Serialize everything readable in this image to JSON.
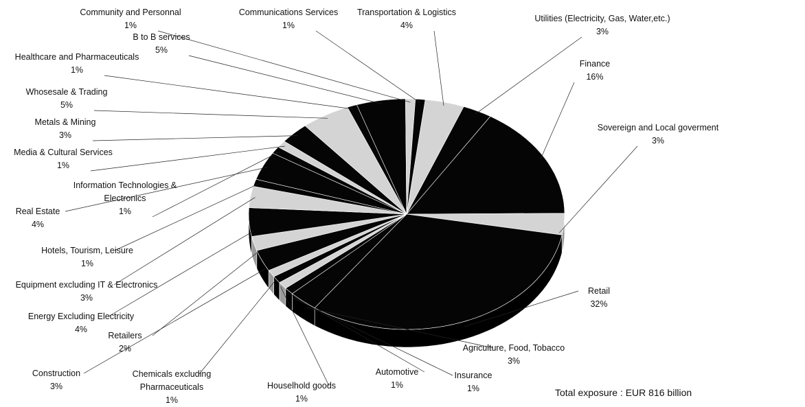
{
  "chart_data": {
    "type": "pie",
    "style": "3d-exploded",
    "total_label": "Total exposure : EUR 816 billion",
    "slices": [
      {
        "name": "Finance",
        "value": 16,
        "pct_label": "16%",
        "shade": "dark"
      },
      {
        "name": "Sovereign and Local goverment",
        "value": 3,
        "pct_label": "3%",
        "shade": "light"
      },
      {
        "name": "Retail",
        "value": 32,
        "pct_label": "32%",
        "shade": "dark"
      },
      {
        "name": "Agriculture, Food, Tobacco",
        "value": 3,
        "pct_label": "3%",
        "shade": "dark"
      },
      {
        "name": "Insurance",
        "value": 1,
        "pct_label": "1%",
        "shade": "dark"
      },
      {
        "name": "Automotive",
        "value": 1,
        "pct_label": "1%",
        "shade": "light"
      },
      {
        "name": "Houselhold goods",
        "value": 1,
        "pct_label": "1%",
        "shade": "dark"
      },
      {
        "name": "Chemicals excluding Pharmaceuticals",
        "value": 1,
        "pct_label": "1%",
        "shade": "light"
      },
      {
        "name": "Construction",
        "value": 3,
        "pct_label": "3%",
        "shade": "dark"
      },
      {
        "name": "Retailers",
        "value": 2,
        "pct_label": "2%",
        "shade": "light"
      },
      {
        "name": "Energy Excluding Electricity",
        "value": 4,
        "pct_label": "4%",
        "shade": "dark"
      },
      {
        "name": "Equipment excluding IT & Electronics",
        "value": 3,
        "pct_label": "3%",
        "shade": "light"
      },
      {
        "name": "Hotels, Tourism, Leisure",
        "value": 1,
        "pct_label": "1%",
        "shade": "dark"
      },
      {
        "name": "Real Estate",
        "value": 4,
        "pct_label": "4%",
        "shade": "dark"
      },
      {
        "name": "Information Technologies & Electronics",
        "value": 1,
        "pct_label": "1%",
        "shade": "dark"
      },
      {
        "name": "Media & Cultural Services",
        "value": 1,
        "pct_label": "1%",
        "shade": "light"
      },
      {
        "name": "Metals & Mining",
        "value": 3,
        "pct_label": "3%",
        "shade": "dark"
      },
      {
        "name": "Whosesale & Trading",
        "value": 5,
        "pct_label": "5%",
        "shade": "light"
      },
      {
        "name": "Healthcare and Pharmaceuticals",
        "value": 1,
        "pct_label": "1%",
        "shade": "dark"
      },
      {
        "name": "B to B services",
        "value": 5,
        "pct_label": "5%",
        "shade": "dark"
      },
      {
        "name": "Community and Personnal",
        "value": 1,
        "pct_label": "1%",
        "shade": "light"
      },
      {
        "name": "Communications Services",
        "value": 1,
        "pct_label": "1%",
        "shade": "dark"
      },
      {
        "name": "Transportation & Logistics",
        "value": 4,
        "pct_label": "4%",
        "shade": "light"
      },
      {
        "name": "Utilities (Electricity, Gas, Water,etc.)",
        "value": 3,
        "pct_label": "3%",
        "shade": "dark"
      }
    ],
    "colors": {
      "dark": "#050505",
      "light": "#d4d4d4",
      "side_dark": "#000000",
      "side_light": "#9a9a9a"
    }
  }
}
